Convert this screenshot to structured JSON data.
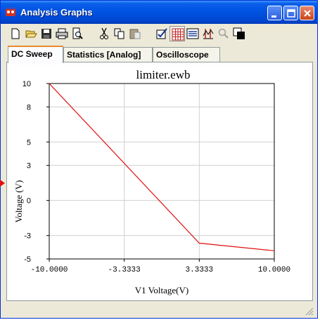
{
  "window": {
    "title": "Analysis Graphs"
  },
  "tabs": [
    {
      "label": "DC Sweep",
      "active": true
    },
    {
      "label": "Statistics [Analog]",
      "active": false
    },
    {
      "label": "Oscilloscope",
      "active": false
    }
  ],
  "toolbar": {
    "icons": [
      "new-icon",
      "open-icon",
      "save-icon",
      "print-icon",
      "print-preview-icon",
      "cut-icon",
      "copy-icon",
      "paste-icon",
      "properties-icon",
      "grid-toggle-icon",
      "legend-toggle-icon",
      "cursors-icon",
      "zoom-icon",
      "restore-view-icon"
    ],
    "active_icons": [
      "grid-toggle-icon"
    ]
  },
  "chart_data": {
    "type": "line",
    "title": "limiter.ewb",
    "xlabel": "V1 Voltage(V)",
    "ylabel": "Voltage (V)",
    "xlim": [
      -10,
      10
    ],
    "ylim": [
      -5,
      10
    ],
    "xticks": [
      "-10.0000",
      "-3.3333",
      "3.3333",
      "10.0000"
    ],
    "yticks": [
      "10",
      "8",
      "5",
      "3",
      "0",
      "-3",
      "-5"
    ],
    "grid": true,
    "series": [
      {
        "color": "#e01010",
        "x": [
          -10,
          3.3333,
          10
        ],
        "y": [
          10,
          -3.65,
          -4.3
        ]
      }
    ]
  }
}
